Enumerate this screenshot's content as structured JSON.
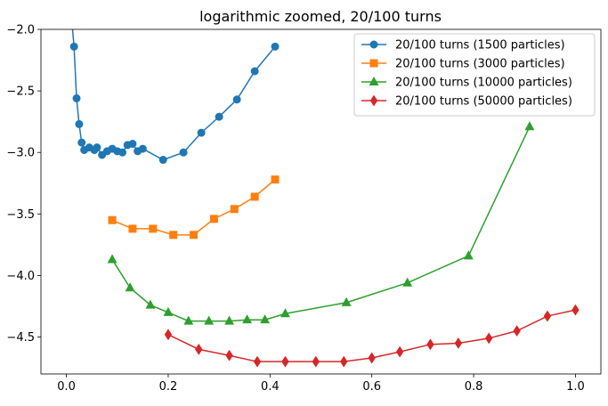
{
  "chart_data": {
    "type": "line",
    "title": "logarithmic zoomed, 20/100 turns",
    "xlabel": "",
    "ylabel": "",
    "xlim": [
      -0.05,
      1.05
    ],
    "ylim": [
      -4.8,
      -2.0
    ],
    "xticks": [
      0.0,
      0.2,
      0.4,
      0.6,
      0.8,
      1.0
    ],
    "xtick_labels": [
      "0.0",
      "0.2",
      "0.4",
      "0.6",
      "0.8",
      "1.0"
    ],
    "yticks": [
      -2.0,
      -2.5,
      -3.0,
      -3.5,
      -4.0,
      -4.5
    ],
    "ytick_labels": [
      "−2.0",
      "−2.5",
      "−3.0",
      "−3.5",
      "−4.0",
      "−4.5"
    ],
    "grid": false,
    "legend_position": "upper right",
    "series": [
      {
        "name": "20/100 turns (1500 particles)",
        "color": "#1f77b4",
        "marker": "circle",
        "x": [
          0.01,
          0.015,
          0.02,
          0.025,
          0.03,
          0.035,
          0.045,
          0.055,
          0.06,
          0.07,
          0.08,
          0.09,
          0.1,
          0.11,
          0.12,
          0.13,
          0.14,
          0.15,
          0.19,
          0.23,
          0.265,
          0.3,
          0.335,
          0.37,
          0.41
        ],
        "y": [
          -1.9,
          -2.14,
          -2.56,
          -2.77,
          -2.92,
          -2.98,
          -2.96,
          -2.98,
          -2.96,
          -3.02,
          -2.99,
          -2.97,
          -2.99,
          -3.0,
          -2.94,
          -2.93,
          -2.99,
          -2.97,
          -3.06,
          -3.0,
          -2.84,
          -2.71,
          -2.57,
          -2.34,
          -2.14
        ]
      },
      {
        "name": "20/100 turns (3000 particles)",
        "color": "#ff7f0e",
        "marker": "square",
        "x": [
          0.09,
          0.13,
          0.17,
          0.21,
          0.25,
          0.29,
          0.33,
          0.37,
          0.41
        ],
        "y": [
          -3.55,
          -3.62,
          -3.62,
          -3.67,
          -3.67,
          -3.54,
          -3.46,
          -3.36,
          -3.22
        ]
      },
      {
        "name": "20/100 turns (10000 particles)",
        "color": "#2ca02c",
        "marker": "triangle",
        "x": [
          0.09,
          0.125,
          0.165,
          0.2,
          0.24,
          0.28,
          0.32,
          0.355,
          0.39,
          0.43,
          0.55,
          0.67,
          0.79,
          0.91
        ],
        "y": [
          -3.87,
          -4.1,
          -4.24,
          -4.3,
          -4.37,
          -4.37,
          -4.37,
          -4.36,
          -4.36,
          -4.31,
          -4.22,
          -4.06,
          -3.84,
          -2.79
        ]
      },
      {
        "name": "20/100 turns (50000 particles)",
        "color": "#d62728",
        "marker": "diamond",
        "x": [
          0.2,
          0.26,
          0.32,
          0.375,
          0.43,
          0.49,
          0.545,
          0.6,
          0.655,
          0.715,
          0.77,
          0.83,
          0.885,
          0.945,
          1.0
        ],
        "y": [
          -4.48,
          -4.6,
          -4.65,
          -4.7,
          -4.7,
          -4.7,
          -4.7,
          -4.67,
          -4.62,
          -4.56,
          -4.55,
          -4.51,
          -4.45,
          -4.33,
          -4.28
        ]
      }
    ]
  }
}
